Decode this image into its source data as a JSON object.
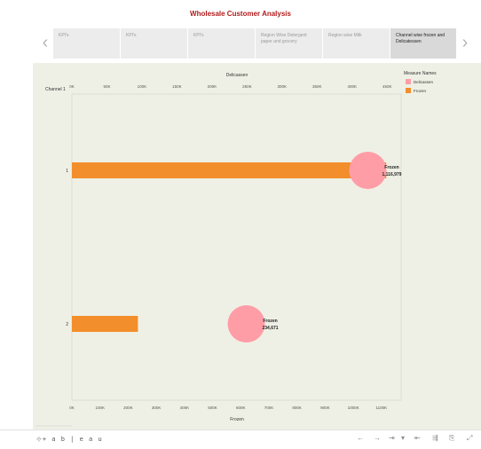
{
  "dashboard": {
    "title": "Wholesale Customer Analysis"
  },
  "nav": {
    "prev_glyph": "‹",
    "next_glyph": "›"
  },
  "tabs": [
    {
      "label": "KPI's"
    },
    {
      "label": "KPI's"
    },
    {
      "label": "KPI's"
    },
    {
      "label": "Region Wise Detergent paper and grocery"
    },
    {
      "label": "Region wise Milk"
    },
    {
      "label": "Channel wise frozen and Delicatessen"
    }
  ],
  "colors": {
    "delicassen": "#ff9da7",
    "frozen": "#f28e2b",
    "panel_bg": "#eff0e5",
    "title": "#b01c1c"
  },
  "legend": {
    "title": "Measure Names",
    "items": [
      {
        "label": "Delicassen",
        "color": "#ff9da7"
      },
      {
        "label": "Frozen",
        "color": "#f28e2b"
      }
    ]
  },
  "chart_data": {
    "type": "bar",
    "row_header": "Channel 1",
    "categories": [
      "1",
      "2"
    ],
    "top_axis": {
      "label": "Delicassen",
      "ticks": [
        "0K",
        "50K",
        "100K",
        "150K",
        "200K",
        "250K",
        "300K",
        "350K",
        "400K",
        "450K"
      ],
      "range": [
        0,
        470000
      ]
    },
    "bottom_axis": {
      "label": "Frozen",
      "ticks": [
        "0K",
        "100K",
        "200K",
        "300K",
        "400K",
        "500K",
        "600K",
        "700K",
        "800K",
        "900K",
        "1000K",
        "1100K"
      ],
      "range": [
        0,
        1170000
      ]
    },
    "series": [
      {
        "name": "Frozen",
        "mark": "bar",
        "axis": "bottom",
        "values": [
          1116979,
          234671
        ]
      },
      {
        "name": "Delicassen",
        "mark": "circle",
        "axis": "top",
        "values": [
          422455,
          248988
        ]
      }
    ],
    "data_labels": [
      {
        "name": "Frozen",
        "value": "1,116,979"
      },
      {
        "name": "Frozen",
        "value": "234,671"
      }
    ],
    "grid": false,
    "legend_position": "top-right"
  },
  "footer": {
    "brand": "⊹+ a b | e a u",
    "buttons": [
      "←",
      "→",
      "⇥",
      "▾",
      "⇤",
      "⇶",
      "⎘",
      "⤢"
    ]
  }
}
